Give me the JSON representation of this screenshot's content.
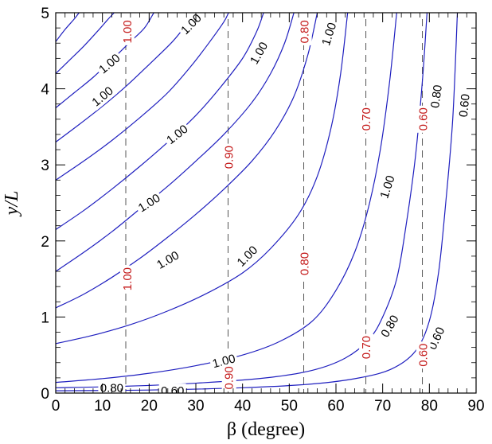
{
  "chart_data": {
    "type": "line",
    "title": "",
    "xlabel": "β (degree)",
    "ylabel": "y/L",
    "xlim": [
      0,
      90
    ],
    "ylim": [
      0,
      5
    ],
    "xticks": [
      "0",
      "10",
      "20",
      "30",
      "40",
      "50",
      "60",
      "70",
      "80",
      "90"
    ],
    "yticks": [
      "0",
      "1",
      "2",
      "3",
      "4",
      "5"
    ],
    "colors": {
      "contour": "#1f1fbf",
      "marker_line": "#555555",
      "red_label": "#c41a1a",
      "black_label": "#000000"
    },
    "contours": [
      {
        "points": [
          [
            0,
            4.62
          ],
          [
            2,
            4.78
          ],
          [
            4,
            4.92
          ],
          [
            5,
            5.0
          ]
        ]
      },
      {
        "points": [
          [
            0,
            4.2
          ],
          [
            3,
            4.38
          ],
          [
            6,
            4.56
          ],
          [
            9,
            4.76
          ],
          [
            11,
            4.9
          ],
          [
            12.5,
            5.0
          ]
        ]
      },
      {
        "points": [
          [
            0,
            3.75
          ],
          [
            4,
            3.95
          ],
          [
            8,
            4.15
          ],
          [
            12,
            4.38
          ],
          [
            16,
            4.62
          ],
          [
            19,
            4.8
          ],
          [
            21,
            5.0
          ]
        ]
      },
      {
        "points": [
          [
            0,
            3.3
          ],
          [
            5,
            3.53
          ],
          [
            10,
            3.77
          ],
          [
            15,
            4.03
          ],
          [
            20,
            4.32
          ],
          [
            25,
            4.62
          ],
          [
            28,
            4.85
          ],
          [
            29.5,
            5.0
          ]
        ]
      },
      {
        "points": [
          [
            0,
            2.8
          ],
          [
            6,
            3.05
          ],
          [
            12,
            3.32
          ],
          [
            18,
            3.62
          ],
          [
            24,
            3.95
          ],
          [
            29,
            4.3
          ],
          [
            33,
            4.62
          ],
          [
            36,
            4.88
          ],
          [
            37,
            5.0
          ]
        ]
      },
      {
        "points": [
          [
            0,
            2.15
          ],
          [
            6,
            2.4
          ],
          [
            12,
            2.68
          ],
          [
            18,
            2.98
          ],
          [
            24,
            3.3
          ],
          [
            30,
            3.65
          ],
          [
            35,
            4.0
          ],
          [
            40,
            4.4
          ],
          [
            43,
            4.75
          ],
          [
            44.5,
            5.0
          ]
        ]
      },
      {
        "points": [
          [
            0,
            1.6
          ],
          [
            6,
            1.85
          ],
          [
            12,
            2.12
          ],
          [
            18,
            2.42
          ],
          [
            24,
            2.72
          ],
          [
            30,
            3.05
          ],
          [
            36,
            3.4
          ],
          [
            42,
            3.82
          ],
          [
            46,
            4.2
          ],
          [
            49,
            4.6
          ],
          [
            51,
            5.0
          ]
        ]
      },
      {
        "points": [
          [
            0,
            1.12
          ],
          [
            6,
            1.3
          ],
          [
            12,
            1.52
          ],
          [
            18,
            1.77
          ],
          [
            24,
            2.05
          ],
          [
            30,
            2.35
          ],
          [
            36,
            2.68
          ],
          [
            42,
            3.05
          ],
          [
            47,
            3.45
          ],
          [
            51,
            3.9
          ],
          [
            54,
            4.45
          ],
          [
            56,
            5.0
          ]
        ]
      },
      {
        "points": [
          [
            0,
            0.65
          ],
          [
            8,
            0.76
          ],
          [
            16,
            0.9
          ],
          [
            24,
            1.08
          ],
          [
            32,
            1.3
          ],
          [
            40,
            1.58
          ],
          [
            46,
            1.9
          ],
          [
            52,
            2.35
          ],
          [
            56,
            2.85
          ],
          [
            59,
            3.5
          ],
          [
            61,
            4.2
          ],
          [
            62.5,
            5.0
          ]
        ]
      },
      {
        "points": [
          [
            0,
            0.14
          ],
          [
            10,
            0.19
          ],
          [
            20,
            0.26
          ],
          [
            30,
            0.36
          ],
          [
            40,
            0.5
          ],
          [
            48,
            0.68
          ],
          [
            55,
            0.95
          ],
          [
            60,
            1.35
          ],
          [
            64,
            1.85
          ],
          [
            67,
            2.45
          ],
          [
            69.5,
            3.2
          ],
          [
            71.5,
            4.1
          ],
          [
            73,
            5.0
          ]
        ]
      },
      {
        "points": [
          [
            0,
            0.07
          ],
          [
            15,
            0.09
          ],
          [
            30,
            0.13
          ],
          [
            45,
            0.2
          ],
          [
            55,
            0.3
          ],
          [
            62,
            0.46
          ],
          [
            67,
            0.7
          ],
          [
            70,
            1.0
          ],
          [
            73,
            1.5
          ],
          [
            75,
            2.2
          ],
          [
            77,
            3.1
          ],
          [
            78.5,
            4.1
          ],
          [
            79.5,
            5.0
          ]
        ]
      },
      {
        "points": [
          [
            0,
            0.03
          ],
          [
            20,
            0.04
          ],
          [
            40,
            0.07
          ],
          [
            55,
            0.12
          ],
          [
            65,
            0.2
          ],
          [
            72,
            0.32
          ],
          [
            77,
            0.55
          ],
          [
            80,
            0.95
          ],
          [
            82,
            1.6
          ],
          [
            83.5,
            2.5
          ],
          [
            85,
            3.6
          ],
          [
            86,
            5.0
          ]
        ]
      }
    ],
    "dashed_lines_x": [
      15,
      36.9,
      53.1,
      66.4,
      78.5
    ],
    "labels": [
      {
        "text": "1.00",
        "x": 11.5,
        "y": 4.33,
        "angle": -40,
        "color": "black"
      },
      {
        "text": "1.00",
        "x": 29,
        "y": 4.85,
        "angle": -45,
        "color": "black"
      },
      {
        "text": "1.00",
        "x": 10,
        "y": 3.9,
        "angle": -40,
        "color": "black"
      },
      {
        "text": "1.00",
        "x": 26,
        "y": 3.4,
        "angle": -38,
        "color": "black"
      },
      {
        "text": "1.00",
        "x": 20,
        "y": 2.5,
        "angle": -32,
        "color": "black"
      },
      {
        "text": "1.00",
        "x": 24,
        "y": 1.75,
        "angle": -30,
        "color": "black"
      },
      {
        "text": "1.00",
        "x": 43.5,
        "y": 4.47,
        "angle": -60,
        "color": "black"
      },
      {
        "text": "1.00",
        "x": 58.5,
        "y": 4.72,
        "angle": -72,
        "color": "black"
      },
      {
        "text": "1.00",
        "x": 41,
        "y": 1.8,
        "angle": -45,
        "color": "black"
      },
      {
        "text": "1.00",
        "x": 71,
        "y": 2.71,
        "angle": -72,
        "color": "black"
      },
      {
        "text": "1.00",
        "x": 36,
        "y": 0.42,
        "angle": -15,
        "color": "black"
      },
      {
        "text": "0.80",
        "x": 81.5,
        "y": 3.9,
        "angle": -82,
        "color": "black"
      },
      {
        "text": "0.60",
        "x": 87.5,
        "y": 3.78,
        "angle": -84,
        "color": "black"
      },
      {
        "text": "0.80",
        "x": 71.5,
        "y": 0.88,
        "angle": -60,
        "color": "black"
      },
      {
        "text": "0.60",
        "x": 81.5,
        "y": 0.72,
        "angle": -65,
        "color": "black"
      },
      {
        "text": "0.80",
        "x": 12,
        "y": 0.07,
        "angle": 0,
        "color": "black"
      },
      {
        "text": "0.60",
        "x": 25,
        "y": 0.03,
        "angle": 0,
        "color": "black"
      },
      {
        "text": "1.00",
        "x": 15.3,
        "y": 4.75,
        "angle": -90,
        "color": "red"
      },
      {
        "text": "0.80",
        "x": 53.3,
        "y": 4.75,
        "angle": -90,
        "color": "red"
      },
      {
        "text": "0.70",
        "x": 66.5,
        "y": 3.6,
        "angle": -90,
        "color": "red"
      },
      {
        "text": "0.60",
        "x": 78.7,
        "y": 3.6,
        "angle": -90,
        "color": "red"
      },
      {
        "text": "0.90",
        "x": 37.1,
        "y": 3.1,
        "angle": -90,
        "color": "red"
      },
      {
        "text": "1.00",
        "x": 15.3,
        "y": 1.5,
        "angle": -90,
        "color": "red"
      },
      {
        "text": "0.80",
        "x": 53.3,
        "y": 1.7,
        "angle": -90,
        "color": "red"
      },
      {
        "text": "0.70",
        "x": 66.5,
        "y": 0.6,
        "angle": -90,
        "color": "red"
      },
      {
        "text": "0.60",
        "x": 78.7,
        "y": 0.5,
        "angle": -90,
        "color": "red"
      },
      {
        "text": "0.90",
        "x": 37.1,
        "y": 0.2,
        "angle": -90,
        "color": "red"
      }
    ]
  }
}
